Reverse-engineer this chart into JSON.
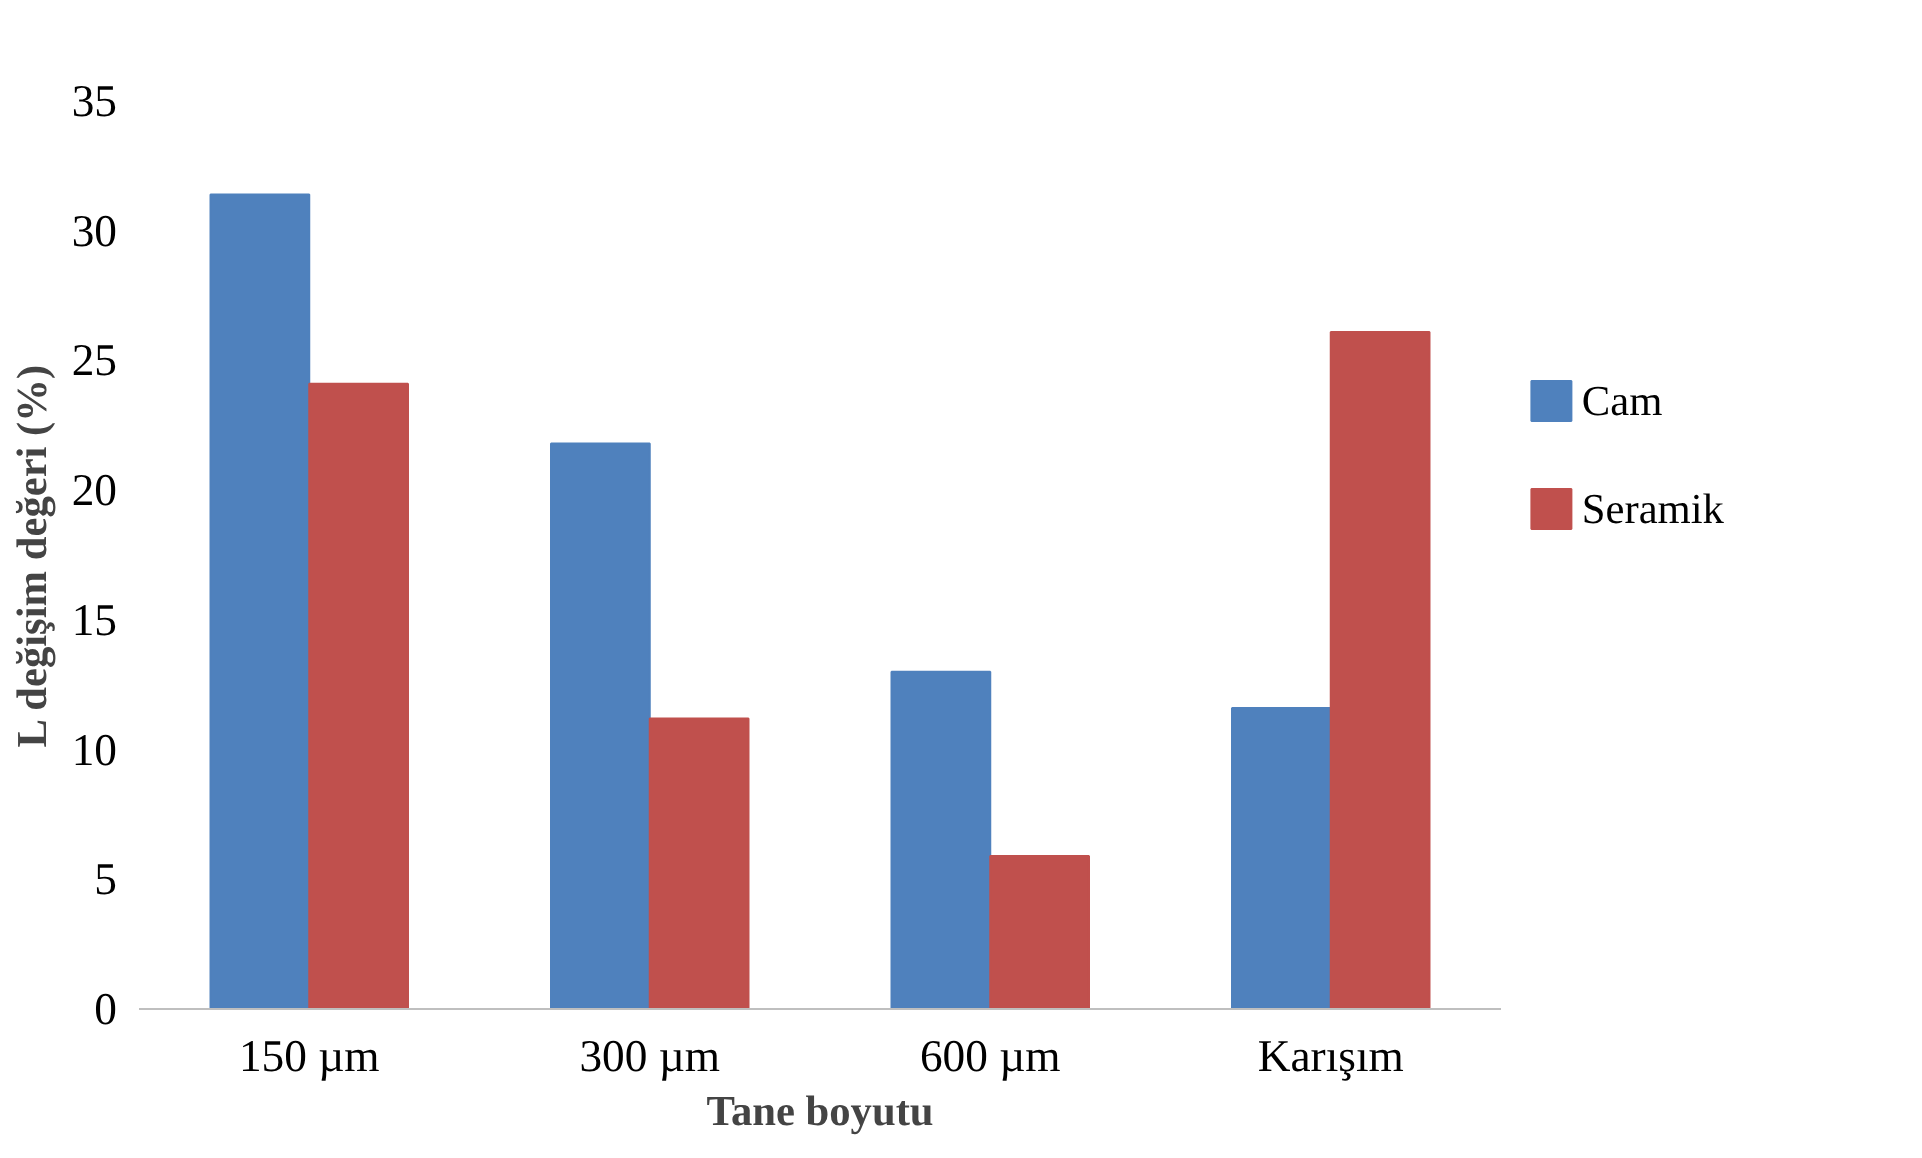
{
  "chart_data": {
    "type": "bar",
    "xlabel": "Tane boyutu",
    "ylabel": "L değişim değeri (%)",
    "categories": [
      "150 µm",
      "300 µm",
      "600 µm",
      "Karışım"
    ],
    "series": [
      {
        "name": "Cam",
        "color": "#4f81bd",
        "values": [
          31.4,
          21.8,
          13.0,
          11.6
        ]
      },
      {
        "name": "Seramik",
        "color": "#c0504d",
        "values": [
          24.1,
          11.2,
          5.9,
          26.1
        ]
      }
    ],
    "ylim": [
      0,
      35
    ],
    "yticks": [
      0,
      5,
      10,
      15,
      20,
      25,
      30,
      35
    ],
    "grid": false,
    "legend": "right"
  }
}
